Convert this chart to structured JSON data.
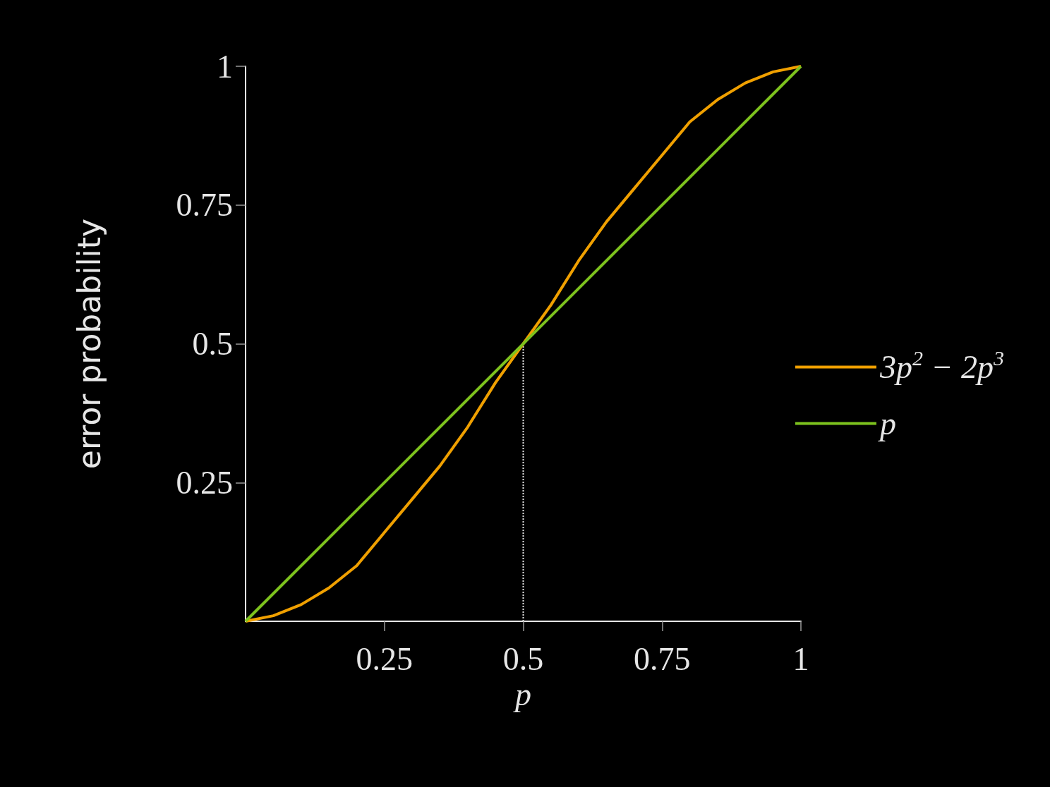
{
  "chart_data": {
    "type": "line",
    "xlabel": "p",
    "ylabel": "error probability",
    "xlim": [
      0,
      1
    ],
    "ylim": [
      0,
      1
    ],
    "xticks": [
      0.25,
      0.5,
      0.75,
      1
    ],
    "yticks": [
      0.25,
      0.5,
      0.75,
      1
    ],
    "grid": false,
    "legend": "right",
    "marker": "none",
    "line_style": "solid",
    "series": [
      {
        "name": "3p$^{2}$ − 2p$^{3}$",
        "color": "#f0a000",
        "x": [
          0,
          0.05,
          0.1,
          0.15,
          0.2,
          0.25,
          0.3,
          0.35,
          0.4,
          0.45,
          0.5,
          0.55,
          0.6,
          0.65,
          0.7,
          0.75,
          0.8,
          0.85,
          0.9,
          0.95,
          1
        ],
        "values": [
          0,
          0.01,
          0.03,
          0.06,
          0.1,
          0.16,
          0.22,
          0.28,
          0.35,
          0.43,
          0.5,
          0.57,
          0.65,
          0.72,
          0.78,
          0.84,
          0.9,
          0.94,
          0.97,
          0.99,
          1
        ]
      },
      {
        "name": "p",
        "color": "#7dc21e",
        "x": [
          0,
          1
        ],
        "values": [
          0,
          1
        ]
      },
      {
        "color": "#e0e0e0",
        "x": [
          0.5,
          0.5
        ],
        "values": [
          0,
          0.5
        ],
        "line_style": "dotted"
      }
    ]
  }
}
